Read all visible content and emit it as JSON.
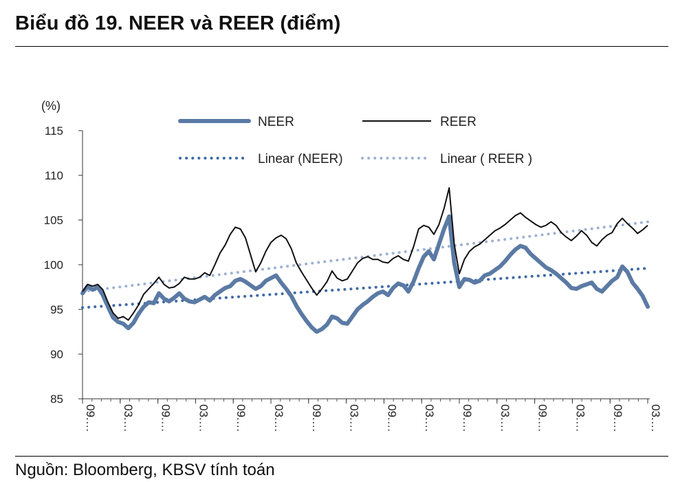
{
  "title": "Biểu đồ 19. NEER và REER (điểm)",
  "source": "Nguồn: Bloomberg, KBSV tính toán",
  "chart_data": {
    "type": "line",
    "ylabel": "(%)",
    "ylim": [
      85,
      115
    ],
    "yticks": [
      85,
      90,
      95,
      100,
      105,
      110,
      115
    ],
    "grid": false,
    "legend_position": "top",
    "colors": {
      "neer": "#5b7aa4",
      "reer": "#111111",
      "linear_neer": "#3f6aa6",
      "linear_reer": "#9fb2d3"
    },
    "xticks": [
      "09.…",
      "03.…",
      "09.…",
      "03.…",
      "09.…",
      "03.…",
      "09.…",
      "03.…",
      "09.…",
      "03.…",
      "09.…",
      "03.…",
      "09.…",
      "03.…",
      "09.…",
      "03.…"
    ],
    "series": [
      {
        "name": "NEER",
        "key": "neer",
        "style": "thick",
        "values": [
          96.8,
          97.6,
          97.2,
          97.5,
          96.6,
          95.3,
          94.1,
          93.6,
          93.4,
          92.9,
          93.5,
          94.5,
          95.3,
          95.8,
          95.7,
          96.8,
          96.2,
          95.9,
          96.3,
          96.8,
          96.2,
          95.9,
          95.8,
          96.1,
          96.4,
          96.0,
          96.6,
          97.0,
          97.4,
          97.6,
          98.2,
          98.4,
          98.1,
          97.7,
          97.3,
          97.6,
          98.2,
          98.5,
          98.8,
          98.0,
          97.3,
          96.5,
          95.4,
          94.5,
          93.7,
          93.0,
          92.5,
          92.8,
          93.3,
          94.2,
          94.0,
          93.5,
          93.4,
          94.2,
          95.0,
          95.5,
          95.9,
          96.4,
          96.8,
          97.0,
          96.6,
          97.4,
          97.9,
          97.7,
          97.0,
          98.1,
          99.6,
          100.9,
          101.5,
          100.6,
          102.3,
          104.0,
          105.4,
          100.2,
          97.5,
          98.4,
          98.3,
          98.0,
          98.2,
          98.8,
          99.0,
          99.4,
          99.8,
          100.4,
          101.1,
          101.7,
          102.1,
          101.9,
          101.2,
          100.7,
          100.2,
          99.7,
          99.4,
          99.0,
          98.5,
          98.0,
          97.4,
          97.3,
          97.6,
          97.8,
          98.0,
          97.3,
          97.0,
          97.6,
          98.2,
          98.6,
          99.8,
          99.2,
          98.0,
          97.3,
          96.5,
          95.3
        ]
      },
      {
        "name": "REER",
        "key": "reer",
        "style": "thin",
        "values": [
          97.0,
          97.8,
          97.6,
          97.8,
          97.2,
          95.8,
          94.6,
          94.0,
          94.2,
          93.8,
          94.6,
          95.5,
          96.7,
          97.3,
          97.9,
          98.6,
          97.8,
          97.4,
          97.5,
          97.9,
          98.6,
          98.4,
          98.4,
          98.6,
          99.1,
          98.8,
          100.0,
          101.3,
          102.2,
          103.4,
          104.2,
          104.0,
          103.0,
          101.1,
          99.2,
          100.2,
          101.5,
          102.5,
          103.0,
          103.3,
          102.9,
          101.8,
          100.2,
          99.2,
          98.3,
          97.4,
          96.6,
          97.3,
          98.1,
          99.3,
          98.5,
          98.2,
          98.4,
          99.3,
          100.2,
          100.7,
          100.9,
          100.6,
          100.6,
          100.3,
          100.2,
          100.7,
          101.0,
          100.6,
          100.4,
          102.0,
          104.0,
          104.4,
          104.2,
          103.4,
          104.5,
          106.3,
          108.6,
          102.3,
          99.0,
          100.6,
          101.5,
          102.0,
          102.3,
          102.8,
          103.3,
          103.8,
          104.1,
          104.5,
          105.0,
          105.5,
          105.8,
          105.3,
          104.9,
          104.5,
          104.2,
          104.4,
          104.8,
          104.4,
          103.6,
          103.1,
          102.7,
          103.2,
          103.8,
          103.3,
          102.5,
          102.1,
          102.8,
          103.3,
          103.6,
          104.6,
          105.2,
          104.6,
          104.1,
          103.5,
          103.9,
          104.4
        ]
      },
      {
        "name": "Linear (NEER)",
        "key": "linear_neer",
        "style": "dotted",
        "values": [
          95.2,
          99.6
        ]
      },
      {
        "name": "Linear ( REER )",
        "key": "linear_reer",
        "style": "dotted",
        "values": [
          97.0,
          104.8
        ]
      }
    ]
  }
}
